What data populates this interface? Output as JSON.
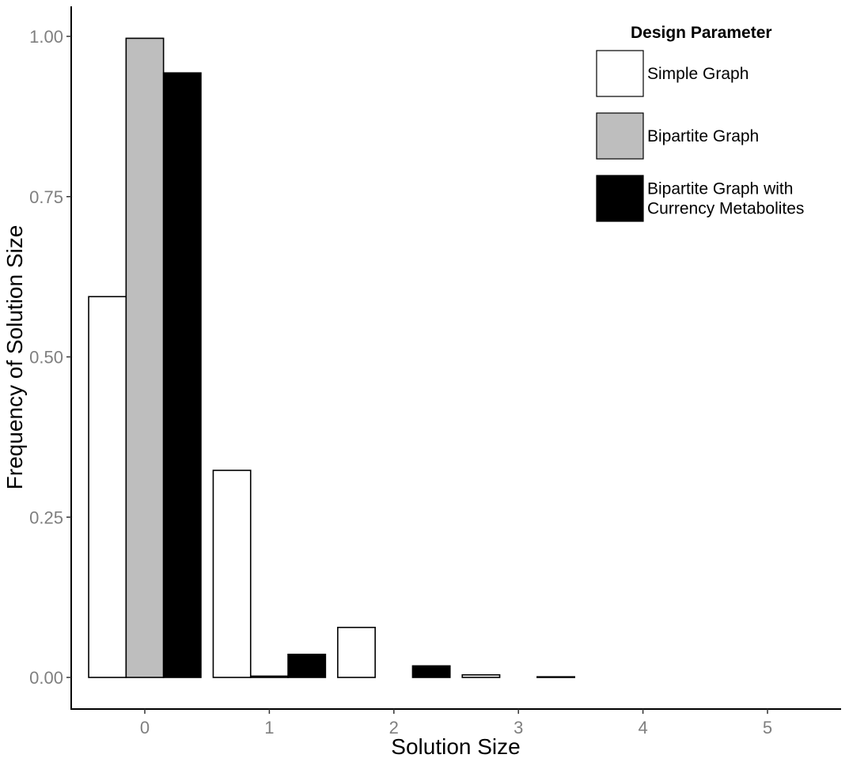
{
  "chart_data": {
    "type": "bar",
    "title": "",
    "xlabel": "Solution Size",
    "ylabel": "Frequency of Solution Size",
    "categories": [
      "0",
      "1",
      "2",
      "3",
      "4",
      "5"
    ],
    "y_ticks": [
      "0.00",
      "0.25",
      "0.50",
      "0.75",
      "1.00"
    ],
    "ylim": [
      0,
      1.0
    ],
    "grid": false,
    "legend": {
      "title": "Design Parameter",
      "placement": "top-right"
    },
    "series": [
      {
        "name": "Simple Graph",
        "color": "#ffffff",
        "values": [
          0.594,
          0.323,
          0.078,
          0.004,
          0.0,
          0.0
        ]
      },
      {
        "name": "Bipartite Graph",
        "color": "#bebebe",
        "values": [
          0.997,
          0.002,
          0.0,
          0.0,
          0.0,
          0.0
        ]
      },
      {
        "name": "Bipartite Graph with\nCurrency Metabolites",
        "color": "#000000",
        "values": [
          0.943,
          0.036,
          0.018,
          0.001,
          0.0,
          0.0
        ]
      }
    ]
  }
}
